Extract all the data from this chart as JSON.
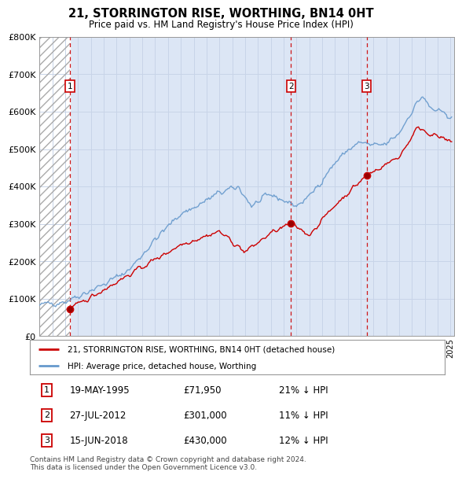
{
  "title": "21, STORRINGTON RISE, WORTHING, BN14 0HT",
  "subtitle": "Price paid vs. HM Land Registry's House Price Index (HPI)",
  "ylim": [
    0,
    800000
  ],
  "yticks": [
    0,
    100000,
    200000,
    300000,
    400000,
    500000,
    600000,
    700000,
    800000
  ],
  "xlim": [
    1993,
    2025.3
  ],
  "hatch_end_year": 1995.38,
  "sale_points": [
    {
      "year": 1995.38,
      "price": 71950,
      "label": "1"
    },
    {
      "year": 2012.58,
      "price": 301000,
      "label": "2"
    },
    {
      "year": 2018.46,
      "price": 430000,
      "label": "3"
    }
  ],
  "table_rows": [
    {
      "num": "1",
      "date": "19-MAY-1995",
      "price": "£71,950",
      "note": "21% ↓ HPI"
    },
    {
      "num": "2",
      "date": "27-JUL-2012",
      "price": "£301,000",
      "note": "11% ↓ HPI"
    },
    {
      "num": "3",
      "date": "15-JUN-2018",
      "price": "£430,000",
      "note": "12% ↓ HPI"
    }
  ],
  "legend_entries": [
    "21, STORRINGTON RISE, WORTHING, BN14 0HT (detached house)",
    "HPI: Average price, detached house, Worthing"
  ],
  "footer": "Contains HM Land Registry data © Crown copyright and database right 2024.\nThis data is licensed under the Open Government Licence v3.0.",
  "sale_line_color": "#cc0000",
  "hpi_line_color": "#6699cc",
  "grid_color": "#c8d4e8",
  "bg_color": "#dce6f5"
}
